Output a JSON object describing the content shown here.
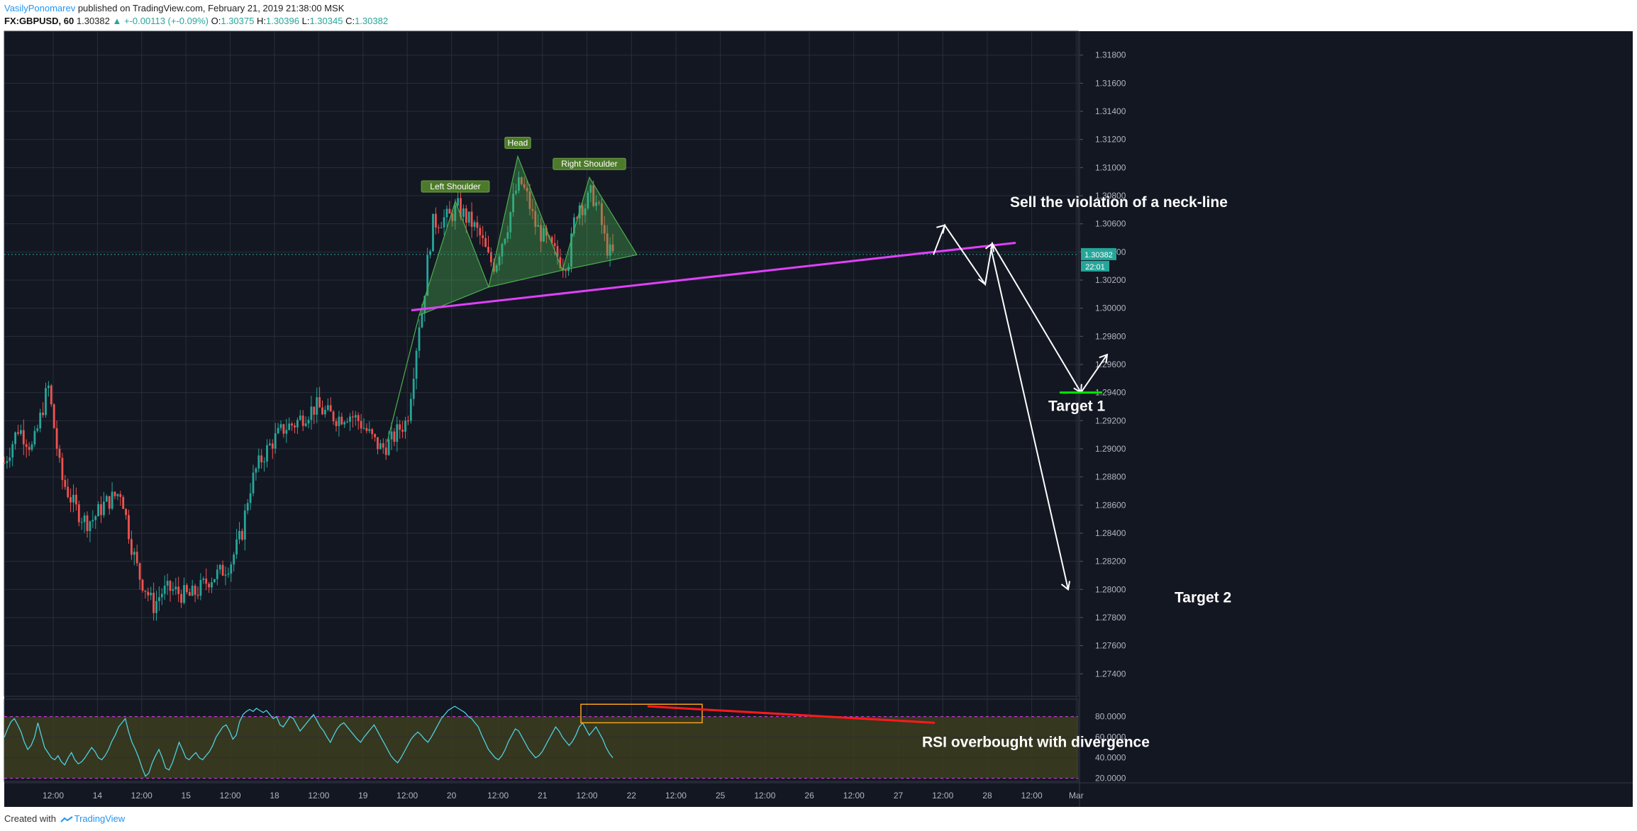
{
  "header": {
    "author": "VasilyPonomarev",
    "published_text": "published on TradingView.com, February 21, 2019 21:38:00 MSK",
    "symbol": "FX:GBPUSD, 60",
    "last": "1.30382",
    "change": "+-0.00113 (+-0.09%)",
    "o_label": "O:",
    "o_val": "1.30375",
    "h_label": "H:",
    "h_val": "1.30396",
    "l_label": "L:",
    "l_val": "1.30345",
    "c_label": "C:",
    "c_val": "1.30382"
  },
  "footer": {
    "created_with": "Created with",
    "brand": "TradingView"
  },
  "colors": {
    "background": "#131722",
    "grid": "#2a2e39",
    "up": "#26a69a",
    "down": "#ef5350",
    "pattern_fill": "#4caf50",
    "neckline": "#e040fb",
    "rsi_line": "#4dd0e1",
    "rsi_band": "#3d3d1e",
    "divergence": "#ff1a1a",
    "annotation": "#ffffff",
    "target_line": "#00e600"
  },
  "chart_data": [
    {
      "type": "candlestick",
      "title": "",
      "symbol": "FX:GBPUSD",
      "interval": "60",
      "x_labels": [
        "12:00",
        "14",
        "12:00",
        "15",
        "12:00",
        "18",
        "12:00",
        "19",
        "12:00",
        "20",
        "12:00",
        "21",
        "12:00",
        "22",
        "12:00",
        "25",
        "12:00",
        "26",
        "12:00",
        "27",
        "12:00",
        "28",
        "12:00",
        "Mar"
      ],
      "y_ticks": [
        "1.31800",
        "1.31600",
        "1.31400",
        "1.31200",
        "1.31000",
        "1.30800",
        "1.30600",
        "1.30400",
        "1.30200",
        "1.30000",
        "1.29800",
        "1.29600",
        "1.29400",
        "1.29200",
        "1.29000",
        "1.28800",
        "1.28600",
        "1.28400",
        "1.28200",
        "1.28000",
        "1.27800",
        "1.27600",
        "1.27400"
      ],
      "ylim": [
        1.2724,
        1.3197
      ],
      "last_price_label": "1.30382",
      "countdown_label": "22:01",
      "grid": true,
      "price_path": [
        [
          0,
          1.289
        ],
        [
          20,
          1.2915
        ],
        [
          40,
          1.29
        ],
        [
          62,
          1.2945
        ],
        [
          80,
          1.288
        ],
        [
          100,
          1.2858
        ],
        [
          115,
          1.2848
        ],
        [
          125,
          1.285
        ],
        [
          140,
          1.286
        ],
        [
          155,
          1.2866
        ],
        [
          165,
          1.287
        ],
        [
          172,
          1.285
        ],
        [
          180,
          1.283
        ],
        [
          190,
          1.281
        ],
        [
          200,
          1.28
        ],
        [
          210,
          1.2788
        ],
        [
          222,
          1.2798
        ],
        [
          235,
          1.28
        ],
        [
          248,
          1.2797
        ],
        [
          262,
          1.2795
        ],
        [
          275,
          1.28
        ],
        [
          290,
          1.2808
        ],
        [
          305,
          1.2812
        ],
        [
          320,
          1.282
        ],
        [
          335,
          1.284
        ],
        [
          345,
          1.287
        ],
        [
          355,
          1.2885
        ],
        [
          365,
          1.2895
        ],
        [
          378,
          1.2905
        ],
        [
          395,
          1.2915
        ],
        [
          410,
          1.2918
        ],
        [
          425,
          1.2925
        ],
        [
          440,
          1.293
        ],
        [
          455,
          1.2925
        ],
        [
          470,
          1.2922
        ],
        [
          485,
          1.2925
        ],
        [
          500,
          1.292
        ],
        [
          512,
          1.2912
        ],
        [
          522,
          1.2905
        ],
        [
          532,
          1.29
        ],
        [
          545,
          1.2905
        ],
        [
          558,
          1.2915
        ],
        [
          568,
          1.292
        ],
        [
          578,
          1.296
        ],
        [
          585,
          1.299
        ],
        [
          590,
          1.3
        ],
        [
          596,
          1.303
        ],
        [
          604,
          1.306
        ],
        [
          615,
          1.3063
        ],
        [
          628,
          1.3065
        ],
        [
          640,
          1.3072
        ],
        [
          650,
          1.3065
        ],
        [
          660,
          1.306
        ],
        [
          672,
          1.305
        ],
        [
          683,
          1.3035
        ],
        [
          692,
          1.303
        ],
        [
          700,
          1.3045
        ],
        [
          710,
          1.306
        ],
        [
          720,
          1.3082
        ],
        [
          728,
          1.309
        ],
        [
          738,
          1.3078
        ],
        [
          748,
          1.306
        ],
        [
          758,
          1.3052
        ],
        [
          768,
          1.3045
        ],
        [
          778,
          1.3038
        ],
        [
          788,
          1.3032
        ],
        [
          796,
          1.3035
        ],
        [
          803,
          1.306
        ],
        [
          810,
          1.3075
        ],
        [
          818,
          1.3072
        ],
        [
          828,
          1.3082
        ],
        [
          838,
          1.307
        ],
        [
          846,
          1.305
        ],
        [
          852,
          1.304
        ],
        [
          858,
          1.3038
        ]
      ],
      "annotations": {
        "left_shoulder": "Left Shoulder",
        "head": "Head",
        "right_shoulder": "Right Shoulder",
        "sell_note": "Sell the violation of a neck-line",
        "target1": "Target 1",
        "target2": "Target 2",
        "target1_price": 1.294,
        "target2_price": 1.28
      }
    },
    {
      "type": "line",
      "name": "RSI",
      "y_ticks": [
        "80.0000",
        "60.0000",
        "40.0000",
        "20.0000"
      ],
      "ylim": [
        17,
        97
      ],
      "overbought": 80,
      "oversold": 20,
      "annotation": "RSI overbought with divergence",
      "values": [
        60,
        68,
        75,
        78,
        72,
        65,
        55,
        48,
        52,
        60,
        74,
        62,
        50,
        45,
        40,
        38,
        42,
        36,
        33,
        40,
        45,
        38,
        34,
        36,
        40,
        45,
        50,
        46,
        40,
        38,
        42,
        48,
        56,
        62,
        70,
        74,
        78,
        65,
        55,
        48,
        40,
        30,
        22,
        25,
        35,
        42,
        48,
        40,
        30,
        28,
        35,
        45,
        55,
        48,
        40,
        38,
        42,
        45,
        40,
        38,
        42,
        46,
        52,
        60,
        65,
        70,
        72,
        66,
        58,
        62,
        75,
        82,
        85,
        87,
        85,
        88,
        86,
        84,
        86,
        82,
        78,
        80,
        72,
        70,
        75,
        80,
        78,
        72,
        66,
        70,
        74,
        78,
        82,
        76,
        70,
        66,
        60,
        55,
        62,
        68,
        72,
        74,
        70,
        66,
        62,
        58,
        55,
        60,
        64,
        68,
        72,
        66,
        60,
        54,
        48,
        42,
        38,
        35,
        40,
        46,
        52,
        58,
        62,
        65,
        62,
        58,
        55,
        60,
        66,
        72,
        78,
        82,
        86,
        88,
        90,
        88,
        86,
        84,
        80,
        78,
        74,
        70,
        62,
        55,
        48,
        44,
        40,
        38,
        42,
        48,
        56,
        62,
        68,
        66,
        60,
        54,
        48,
        44,
        40,
        42,
        46,
        52,
        58,
        64,
        70,
        66,
        60,
        56,
        52,
        56,
        62,
        70,
        74,
        68,
        62,
        66,
        70,
        64,
        58,
        50,
        44,
        40
      ]
    }
  ]
}
